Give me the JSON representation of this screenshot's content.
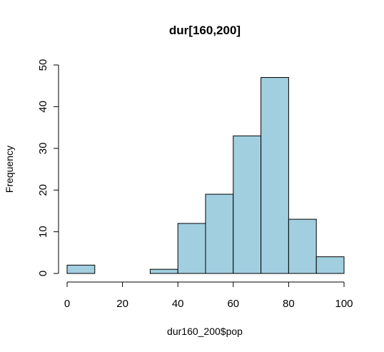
{
  "chart_data": {
    "type": "bar",
    "title": "dur[160,200]",
    "xlabel": "dur160_200$pop",
    "ylabel": "Frequency",
    "bins": [
      {
        "start": 0,
        "end": 10,
        "count": 2
      },
      {
        "start": 10,
        "end": 20,
        "count": 0
      },
      {
        "start": 20,
        "end": 30,
        "count": 0
      },
      {
        "start": 30,
        "end": 40,
        "count": 1
      },
      {
        "start": 40,
        "end": 50,
        "count": 12
      },
      {
        "start": 50,
        "end": 60,
        "count": 19
      },
      {
        "start": 60,
        "end": 70,
        "count": 33
      },
      {
        "start": 70,
        "end": 80,
        "count": 47
      },
      {
        "start": 80,
        "end": 90,
        "count": 13
      },
      {
        "start": 90,
        "end": 100,
        "count": 4
      }
    ],
    "xlim": [
      0,
      100
    ],
    "ylim": [
      0,
      50
    ],
    "x_ticks": [
      "0",
      "20",
      "40",
      "60",
      "80",
      "100"
    ],
    "y_ticks": [
      "0",
      "10",
      "20",
      "30",
      "40",
      "50"
    ],
    "bar_color": "#a1cfe0",
    "grid": false,
    "legend": "none"
  }
}
